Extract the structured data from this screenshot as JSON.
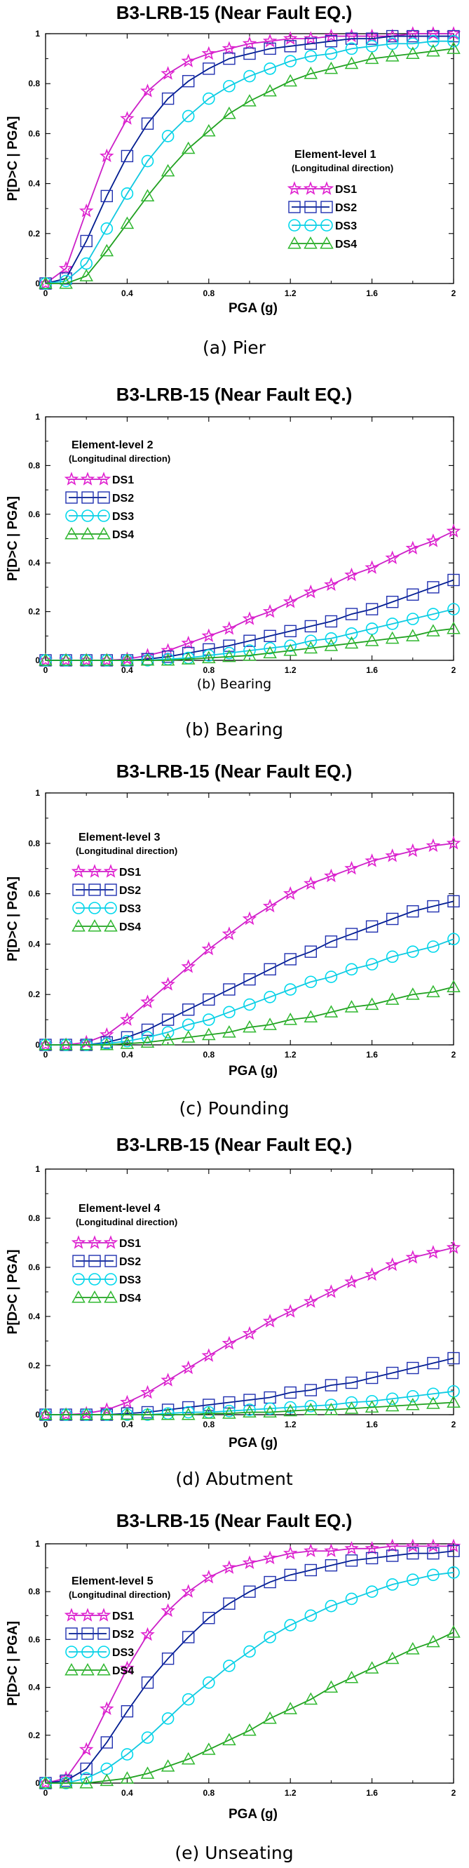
{
  "colors": {
    "DS1": "#e020d0",
    "DS2": "#2030b0",
    "DS3": "#00d8ec",
    "DS4": "#30b830",
    "DS1_line": "#cc20c8",
    "DS2_line": "#001c90",
    "DS3_line": "#10c8e0",
    "DS4_line": "#20a020"
  },
  "chart_data": [
    {
      "type": "line",
      "title": "B3-LRB-15 (Near Fault EQ.)",
      "xlabel": "PGA (g)",
      "ylabel": "P[D>C | PGA]",
      "xlim": [
        0,
        2
      ],
      "ylim": [
        0,
        1
      ],
      "xticks": [
        "0",
        "0.4",
        "0.8",
        "1.2",
        "1.6",
        "2"
      ],
      "yticks": [
        "0",
        "0.2",
        "0.4",
        "0.6",
        "0.8",
        "1"
      ],
      "x": [
        0,
        0.1,
        0.2,
        0.3,
        0.4,
        0.5,
        0.6,
        0.7,
        0.8,
        0.9,
        1.0,
        1.1,
        1.2,
        1.3,
        1.4,
        1.5,
        1.6,
        1.7,
        1.8,
        1.9,
        2.0
      ],
      "legend_title": "Element-level 1",
      "legend_subtitle": "(Longitudinal direction)",
      "legend_position": "center-right",
      "caption": "(a) Pier",
      "subcaption": "",
      "series": [
        {
          "name": "DS1",
          "marker": "star",
          "values": [
            0.0,
            0.06,
            0.29,
            0.51,
            0.66,
            0.77,
            0.84,
            0.89,
            0.92,
            0.94,
            0.96,
            0.97,
            0.98,
            0.98,
            0.99,
            0.99,
            0.99,
            0.99,
            1.0,
            1.0,
            1.0
          ]
        },
        {
          "name": "DS2",
          "marker": "square",
          "values": [
            0.0,
            0.02,
            0.17,
            0.35,
            0.51,
            0.64,
            0.74,
            0.81,
            0.86,
            0.9,
            0.92,
            0.94,
            0.95,
            0.96,
            0.97,
            0.98,
            0.98,
            0.99,
            0.99,
            0.99,
            0.99
          ]
        },
        {
          "name": "DS3",
          "marker": "circle",
          "values": [
            0.0,
            0.01,
            0.08,
            0.22,
            0.36,
            0.49,
            0.59,
            0.67,
            0.74,
            0.79,
            0.83,
            0.86,
            0.89,
            0.91,
            0.92,
            0.94,
            0.95,
            0.96,
            0.96,
            0.97,
            0.97
          ]
        },
        {
          "name": "DS4",
          "marker": "triangle",
          "values": [
            0.0,
            0.0,
            0.03,
            0.13,
            0.24,
            0.35,
            0.45,
            0.54,
            0.61,
            0.68,
            0.73,
            0.77,
            0.81,
            0.84,
            0.86,
            0.88,
            0.9,
            0.91,
            0.92,
            0.93,
            0.94
          ]
        }
      ]
    },
    {
      "type": "line",
      "title": "B3-LRB-15 (Near Fault EQ.)",
      "xlabel": "",
      "ylabel": "P[D>C | PGA]",
      "xlim": [
        0,
        2
      ],
      "ylim": [
        0,
        1
      ],
      "xticks": [
        "0",
        "0.4",
        "0.8",
        "1.2",
        "1.6",
        "2"
      ],
      "yticks": [
        "0",
        "0.2",
        "0.4",
        "0.6",
        "0.8",
        "1"
      ],
      "x": [
        0,
        0.1,
        0.2,
        0.3,
        0.4,
        0.5,
        0.6,
        0.7,
        0.8,
        0.9,
        1.0,
        1.1,
        1.2,
        1.3,
        1.4,
        1.5,
        1.6,
        1.7,
        1.8,
        1.9,
        2.0
      ],
      "legend_title": "Element-level 2",
      "legend_subtitle": "(Longitudinal direction)",
      "legend_position": "top-left",
      "caption": "(b) Bearing",
      "subcaption": "(b) Bearing",
      "series": [
        {
          "name": "DS1",
          "marker": "star",
          "values": [
            0.0,
            0.0,
            0.0,
            0.0,
            0.005,
            0.02,
            0.04,
            0.07,
            0.1,
            0.13,
            0.17,
            0.2,
            0.24,
            0.28,
            0.31,
            0.35,
            0.38,
            0.42,
            0.46,
            0.49,
            0.53
          ]
        },
        {
          "name": "DS2",
          "marker": "square",
          "values": [
            0.0,
            0.0,
            0.0,
            0.0,
            0.0,
            0.005,
            0.015,
            0.03,
            0.045,
            0.06,
            0.08,
            0.1,
            0.12,
            0.14,
            0.16,
            0.19,
            0.21,
            0.24,
            0.27,
            0.3,
            0.33
          ]
        },
        {
          "name": "DS3",
          "marker": "circle",
          "values": [
            0.0,
            0.0,
            0.0,
            0.0,
            0.0,
            0.0,
            0.005,
            0.01,
            0.02,
            0.03,
            0.04,
            0.05,
            0.06,
            0.08,
            0.09,
            0.11,
            0.13,
            0.15,
            0.17,
            0.19,
            0.21
          ]
        },
        {
          "name": "DS4",
          "marker": "triangle",
          "values": [
            0.0,
            0.0,
            0.0,
            0.0,
            0.0,
            0.0,
            0.0,
            0.005,
            0.01,
            0.015,
            0.02,
            0.03,
            0.04,
            0.05,
            0.06,
            0.07,
            0.08,
            0.09,
            0.1,
            0.12,
            0.13
          ]
        }
      ]
    },
    {
      "type": "line",
      "title": "B3-LRB-15 (Near Fault EQ.)",
      "xlabel": "PGA (g)",
      "ylabel": "P[D>C | PGA]",
      "xlim": [
        0,
        2
      ],
      "ylim": [
        0,
        1
      ],
      "xticks": [
        "0",
        "0.4",
        "0.8",
        "1.2",
        "1.6",
        "2"
      ],
      "yticks": [
        "0",
        "0.2",
        "0.4",
        "0.6",
        "0.8",
        "1"
      ],
      "x": [
        0,
        0.1,
        0.2,
        0.3,
        0.4,
        0.5,
        0.6,
        0.7,
        0.8,
        0.9,
        1.0,
        1.1,
        1.2,
        1.3,
        1.4,
        1.5,
        1.6,
        1.7,
        1.8,
        1.9,
        2.0
      ],
      "legend_title": "Element-level 3",
      "legend_subtitle": "(Longitudinal direction)",
      "legend_position": "top-left",
      "caption": "(c) Pounding",
      "subcaption": "",
      "series": [
        {
          "name": "DS1",
          "marker": "star",
          "values": [
            0.0,
            0.0,
            0.01,
            0.04,
            0.1,
            0.17,
            0.24,
            0.31,
            0.38,
            0.44,
            0.5,
            0.55,
            0.6,
            0.64,
            0.67,
            0.7,
            0.73,
            0.75,
            0.77,
            0.79,
            0.8
          ]
        },
        {
          "name": "DS2",
          "marker": "square",
          "values": [
            0.0,
            0.0,
            0.0,
            0.01,
            0.03,
            0.06,
            0.1,
            0.14,
            0.18,
            0.22,
            0.26,
            0.3,
            0.34,
            0.37,
            0.41,
            0.44,
            0.47,
            0.5,
            0.53,
            0.55,
            0.57
          ]
        },
        {
          "name": "DS3",
          "marker": "circle",
          "values": [
            0.0,
            0.0,
            0.0,
            0.005,
            0.015,
            0.03,
            0.05,
            0.08,
            0.1,
            0.13,
            0.16,
            0.19,
            0.22,
            0.25,
            0.27,
            0.3,
            0.32,
            0.35,
            0.37,
            0.39,
            0.42
          ]
        },
        {
          "name": "DS4",
          "marker": "triangle",
          "values": [
            0.0,
            0.0,
            0.0,
            0.0,
            0.005,
            0.01,
            0.02,
            0.03,
            0.04,
            0.05,
            0.07,
            0.08,
            0.1,
            0.11,
            0.13,
            0.15,
            0.16,
            0.18,
            0.2,
            0.21,
            0.23
          ]
        }
      ]
    },
    {
      "type": "line",
      "title": "B3-LRB-15 (Near Fault EQ.)",
      "xlabel": "PGA (g)",
      "ylabel": "P[D>C | PGA]",
      "xlim": [
        0,
        2
      ],
      "ylim": [
        0,
        1
      ],
      "xticks": [
        "0",
        "0.4",
        "0.8",
        "1.2",
        "1.6",
        "2"
      ],
      "yticks": [
        "0",
        "0.2",
        "0.4",
        "0.6",
        "0.8",
        "1"
      ],
      "x": [
        0,
        0.1,
        0.2,
        0.3,
        0.4,
        0.5,
        0.6,
        0.7,
        0.8,
        0.9,
        1.0,
        1.1,
        1.2,
        1.3,
        1.4,
        1.5,
        1.6,
        1.7,
        1.8,
        1.9,
        2.0
      ],
      "legend_title": "Element-level 4",
      "legend_subtitle": "(Longitudinal direction)",
      "legend_position": "top-left",
      "caption": "(d) Abutment",
      "subcaption": "",
      "series": [
        {
          "name": "DS1",
          "marker": "star",
          "values": [
            0.0,
            0.0,
            0.005,
            0.02,
            0.05,
            0.09,
            0.14,
            0.19,
            0.24,
            0.29,
            0.33,
            0.38,
            0.42,
            0.46,
            0.5,
            0.54,
            0.57,
            0.61,
            0.64,
            0.66,
            0.68
          ]
        },
        {
          "name": "DS2",
          "marker": "square",
          "values": [
            0.0,
            0.0,
            0.0,
            0.0,
            0.005,
            0.01,
            0.02,
            0.03,
            0.04,
            0.05,
            0.06,
            0.07,
            0.09,
            0.1,
            0.12,
            0.13,
            0.15,
            0.17,
            0.19,
            0.21,
            0.23
          ]
        },
        {
          "name": "DS3",
          "marker": "circle",
          "values": [
            0.0,
            0.0,
            0.0,
            0.0,
            0.0,
            0.0,
            0.005,
            0.01,
            0.01,
            0.015,
            0.02,
            0.025,
            0.03,
            0.035,
            0.04,
            0.05,
            0.055,
            0.065,
            0.075,
            0.085,
            0.095
          ]
        },
        {
          "name": "DS4",
          "marker": "triangle",
          "values": [
            0.0,
            0.0,
            0.0,
            0.0,
            0.0,
            0.0,
            0.0,
            0.0,
            0.005,
            0.005,
            0.01,
            0.01,
            0.015,
            0.02,
            0.02,
            0.025,
            0.03,
            0.035,
            0.04,
            0.045,
            0.05
          ]
        }
      ]
    },
    {
      "type": "line",
      "title": "B3-LRB-15 (Near Fault EQ.)",
      "xlabel": "PGA (g)",
      "ylabel": "P[D>C | PGA]",
      "xlim": [
        0,
        2
      ],
      "ylim": [
        0,
        1
      ],
      "xticks": [
        "0",
        "0.4",
        "0.8",
        "1.2",
        "1.6",
        "2"
      ],
      "yticks": [
        "0",
        "0.2",
        "0.4",
        "0.6",
        "0.8",
        "1"
      ],
      "x": [
        0,
        0.1,
        0.2,
        0.3,
        0.4,
        0.5,
        0.6,
        0.7,
        0.8,
        0.9,
        1.0,
        1.1,
        1.2,
        1.3,
        1.4,
        1.5,
        1.6,
        1.7,
        1.8,
        1.9,
        2.0
      ],
      "legend_title": "Element-level 5",
      "legend_subtitle": "(Longitudinal direction)",
      "legend_position": "top-left",
      "caption": "(e) Unseating",
      "subcaption": "",
      "series": [
        {
          "name": "DS1",
          "marker": "star",
          "values": [
            0.0,
            0.02,
            0.14,
            0.31,
            0.48,
            0.62,
            0.72,
            0.8,
            0.86,
            0.9,
            0.92,
            0.94,
            0.96,
            0.97,
            0.97,
            0.98,
            0.98,
            0.99,
            0.99,
            0.99,
            0.99
          ]
        },
        {
          "name": "DS2",
          "marker": "square",
          "values": [
            0.0,
            0.01,
            0.06,
            0.17,
            0.3,
            0.42,
            0.52,
            0.61,
            0.69,
            0.75,
            0.8,
            0.84,
            0.87,
            0.89,
            0.91,
            0.93,
            0.94,
            0.95,
            0.96,
            0.96,
            0.97
          ]
        },
        {
          "name": "DS3",
          "marker": "circle",
          "values": [
            0.0,
            0.0,
            0.02,
            0.06,
            0.12,
            0.19,
            0.27,
            0.35,
            0.42,
            0.49,
            0.55,
            0.61,
            0.66,
            0.7,
            0.74,
            0.77,
            0.8,
            0.83,
            0.85,
            0.87,
            0.88
          ]
        },
        {
          "name": "DS4",
          "marker": "triangle",
          "values": [
            0.0,
            0.0,
            0.0,
            0.01,
            0.02,
            0.04,
            0.07,
            0.1,
            0.14,
            0.18,
            0.22,
            0.27,
            0.31,
            0.35,
            0.4,
            0.44,
            0.48,
            0.52,
            0.56,
            0.59,
            0.63
          ]
        }
      ]
    }
  ]
}
